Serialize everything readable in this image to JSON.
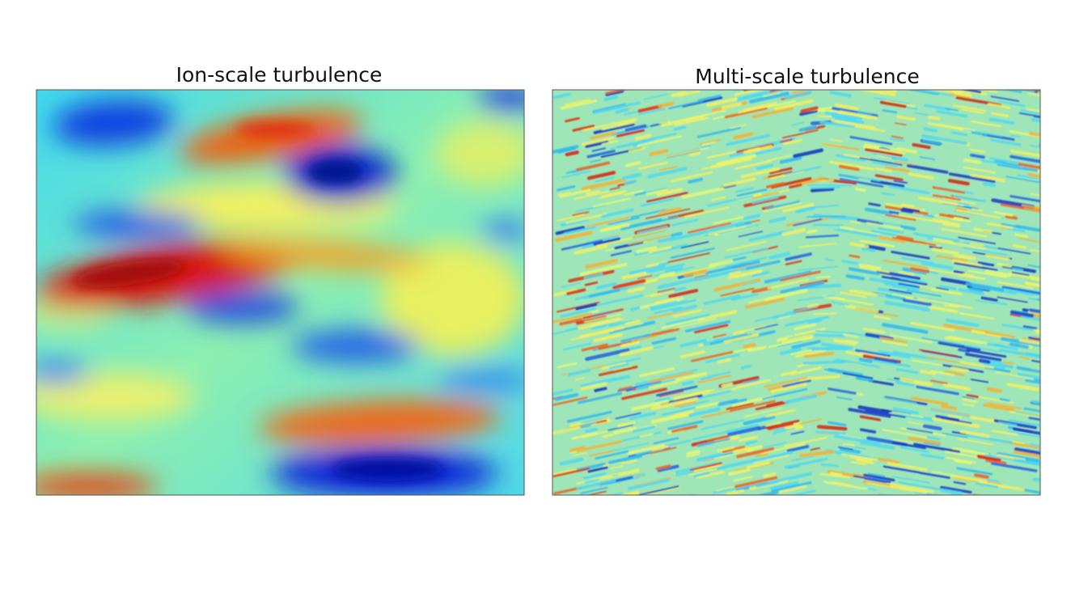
{
  "panels": [
    {
      "title": "Ion-scale turbulence"
    },
    {
      "title": "Multi-scale turbulence"
    }
  ]
}
